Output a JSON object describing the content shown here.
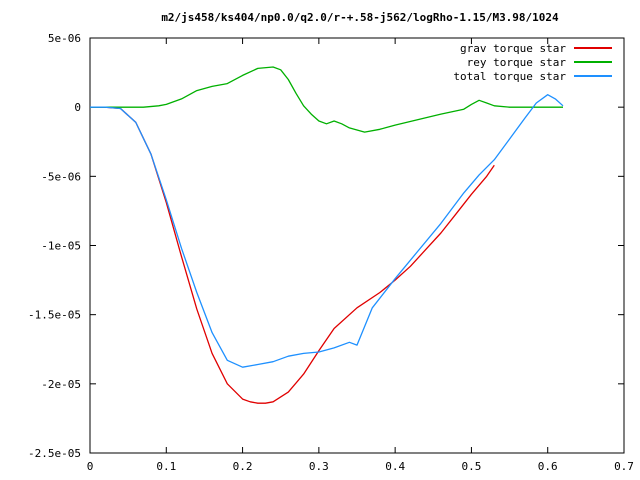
{
  "chart_data": {
    "type": "line",
    "title": "m2/js458/ks404/np0.0/q2.0/r-+.58-j562/logRho-1.15/M3.98/1024",
    "xlabel": "",
    "ylabel": "",
    "xlim": [
      0,
      0.7
    ],
    "ylim": [
      -2.5e-05,
      5e-06
    ],
    "x_ticks": [
      "0",
      "0.1",
      "0.2",
      "0.3",
      "0.4",
      "0.5",
      "0.6",
      "0.7"
    ],
    "x_tick_values": [
      0,
      0.1,
      0.2,
      0.3,
      0.4,
      0.5,
      0.6,
      0.7
    ],
    "y_ticks": [
      "5e-06",
      "0",
      "-5e-06",
      "-1e-05",
      "-1.5e-05",
      "-2e-05",
      "-2.5e-05"
    ],
    "y_tick_values": [
      5e-06,
      0,
      -5e-06,
      -1e-05,
      -1.5e-05,
      -2e-05,
      -2.5e-05
    ],
    "grid": false,
    "legend_position": "top-right",
    "series": [
      {
        "name": "grav torque star",
        "color": "#e00000",
        "x": [
          0,
          0.02,
          0.04,
          0.06,
          0.08,
          0.1,
          0.12,
          0.14,
          0.16,
          0.18,
          0.2,
          0.21,
          0.22,
          0.23,
          0.24,
          0.26,
          0.28,
          0.3,
          0.32,
          0.35,
          0.38,
          0.4,
          0.42,
          0.44,
          0.46,
          0.48,
          0.5,
          0.52,
          0.53
        ],
        "y": [
          0,
          0,
          -1e-07,
          -1.1e-06,
          -3.4e-06,
          -6.9e-06,
          -1.08e-05,
          -1.46e-05,
          -1.78e-05,
          -2e-05,
          -2.11e-05,
          -2.13e-05,
          -2.14e-05,
          -2.14e-05,
          -2.13e-05,
          -2.06e-05,
          -1.93e-05,
          -1.76e-05,
          -1.6e-05,
          -1.45e-05,
          -1.34e-05,
          -1.25e-05,
          -1.15e-05,
          -1.03e-05,
          -9.1e-06,
          -7.7e-06,
          -6.3e-06,
          -5e-06,
          -4.2e-06
        ]
      },
      {
        "name": "rey torque star",
        "color": "#00b000",
        "x": [
          0,
          0.03,
          0.05,
          0.07,
          0.09,
          0.1,
          0.12,
          0.14,
          0.16,
          0.18,
          0.2,
          0.22,
          0.24,
          0.25,
          0.26,
          0.27,
          0.28,
          0.29,
          0.3,
          0.31,
          0.32,
          0.33,
          0.34,
          0.36,
          0.38,
          0.4,
          0.43,
          0.46,
          0.49,
          0.5,
          0.51,
          0.52,
          0.53,
          0.55,
          0.6,
          0.62
        ],
        "y": [
          0,
          0,
          0,
          0,
          1e-07,
          2e-07,
          6e-07,
          1.2e-06,
          1.5e-06,
          1.7e-06,
          2.3e-06,
          2.8e-06,
          2.9e-06,
          2.7e-06,
          2e-06,
          1e-06,
          1e-07,
          -5e-07,
          -1e-06,
          -1.2e-06,
          -1e-06,
          -1.2e-06,
          -1.5e-06,
          -1.8e-06,
          -1.6e-06,
          -1.3e-06,
          -9e-07,
          -5e-07,
          -1.5e-07,
          2e-07,
          5e-07,
          3e-07,
          1e-07,
          0,
          0,
          0
        ]
      },
      {
        "name": "total torque star",
        "color": "#1e90ff",
        "x": [
          0,
          0.02,
          0.04,
          0.06,
          0.08,
          0.1,
          0.12,
          0.14,
          0.16,
          0.18,
          0.2,
          0.22,
          0.24,
          0.26,
          0.28,
          0.3,
          0.32,
          0.34,
          0.35,
          0.37,
          0.4,
          0.43,
          0.46,
          0.49,
          0.51,
          0.53,
          0.55,
          0.57,
          0.585,
          0.6,
          0.61,
          0.62
        ],
        "y": [
          0,
          0,
          -1e-07,
          -1.1e-06,
          -3.4e-06,
          -6.7e-06,
          -1.02e-05,
          -1.34e-05,
          -1.63e-05,
          -1.83e-05,
          -1.88e-05,
          -1.86e-05,
          -1.84e-05,
          -1.8e-05,
          -1.78e-05,
          -1.77e-05,
          -1.74e-05,
          -1.7e-05,
          -1.72e-05,
          -1.45e-05,
          -1.24e-05,
          -1.04e-05,
          -8.4e-06,
          -6.2e-06,
          -4.9e-06,
          -3.8e-06,
          -2.3e-06,
          -8e-07,
          3e-07,
          9e-07,
          6e-07,
          1e-07
        ]
      }
    ]
  }
}
